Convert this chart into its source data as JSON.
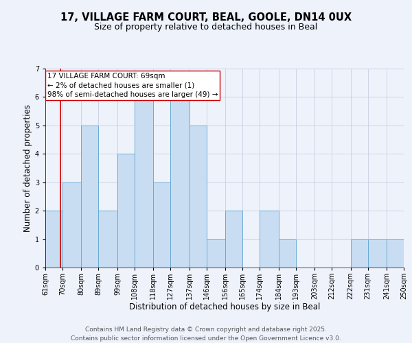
{
  "title_line1": "17, VILLAGE FARM COURT, BEAL, GOOLE, DN14 0UX",
  "title_line2": "Size of property relative to detached houses in Beal",
  "xlabel": "Distribution of detached houses by size in Beal",
  "ylabel": "Number of detached properties",
  "bin_labels": [
    "61sqm",
    "70sqm",
    "80sqm",
    "89sqm",
    "99sqm",
    "108sqm",
    "118sqm",
    "127sqm",
    "137sqm",
    "146sqm",
    "156sqm",
    "165sqm",
    "174sqm",
    "184sqm",
    "193sqm",
    "203sqm",
    "212sqm",
    "222sqm",
    "231sqm",
    "241sqm",
    "250sqm"
  ],
  "bin_edges": [
    61,
    70,
    80,
    89,
    99,
    108,
    118,
    127,
    137,
    146,
    156,
    165,
    174,
    184,
    193,
    203,
    212,
    222,
    231,
    241,
    250
  ],
  "counts": [
    2,
    3,
    5,
    2,
    4,
    6,
    3,
    6,
    5,
    1,
    2,
    0,
    2,
    1,
    0,
    0,
    0,
    1,
    1,
    1,
    0
  ],
  "bar_color": "#c8ddf2",
  "bar_edge_color": "#6aaad4",
  "subject_value": 69,
  "subject_label": "17 VILLAGE FARM COURT: 69sqm",
  "annotation_line2": "← 2% of detached houses are smaller (1)",
  "annotation_line3": "98% of semi-detached houses are larger (49) →",
  "annotation_box_color": "#ffffff",
  "annotation_box_edge": "#cc0000",
  "vline_color": "#cc0000",
  "ylim": [
    0,
    7
  ],
  "yticks": [
    0,
    1,
    2,
    3,
    4,
    5,
    6,
    7
  ],
  "grid_color": "#c8cfe0",
  "bg_color": "#eef2fb",
  "footer_line1": "Contains HM Land Registry data © Crown copyright and database right 2025.",
  "footer_line2": "Contains public sector information licensed under the Open Government Licence v3.0.",
  "title_fontsize": 10.5,
  "subtitle_fontsize": 9,
  "axis_label_fontsize": 8.5,
  "tick_fontsize": 7,
  "annotation_fontsize": 7.5,
  "footer_fontsize": 6.5
}
